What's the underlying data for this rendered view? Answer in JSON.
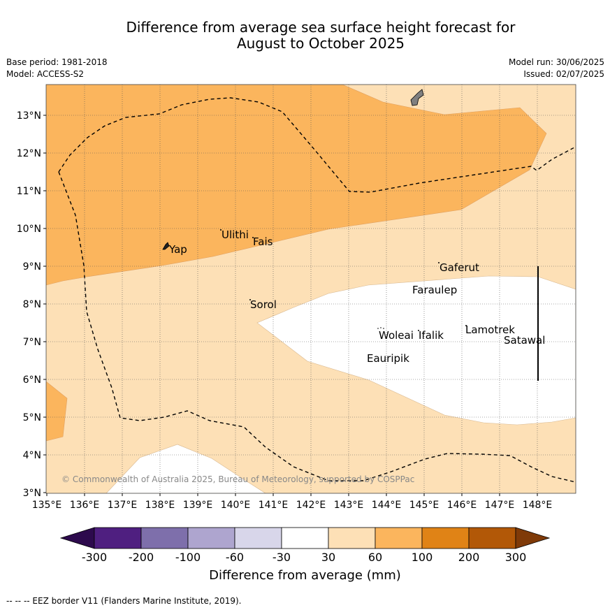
{
  "title_line1": "Difference from average sea surface height forecast for",
  "title_line2": "August to October 2025",
  "meta": {
    "base_period": "Base period: 1981-2018",
    "model": "Model: ACCESS-S2",
    "model_run": "Model run: 30/06/2025",
    "issued": "Issued: 02/07/2025"
  },
  "map": {
    "lat_labels": [
      "13°N",
      "12°N",
      "11°N",
      "10°N",
      "9°N",
      "8°N",
      "7°N",
      "6°N",
      "5°N",
      "4°N",
      "3°N"
    ],
    "lon_labels": [
      "135°E",
      "136°E",
      "137°E",
      "138°E",
      "139°E",
      "140°E",
      "141°E",
      "142°E",
      "143°E",
      "144°E",
      "145°E",
      "146°E",
      "147°E",
      "148°E"
    ],
    "places": [
      "Yap",
      "Ulithi",
      "Fais",
      "Gaferut",
      "Faraulep",
      "Sorol",
      "Woleai",
      "Ifalik",
      "Lamotrek",
      "Satawal",
      "Eauripik"
    ],
    "copyright": "© Commonwealth of Australia 2025, Bureau of Meteorology, supported by COSPPac",
    "colors": {
      "band_30_60": "#fde0b6",
      "band_60_100": "#fbb55d",
      "land": "#7f7f7f"
    }
  },
  "colorbar": {
    "ticks": [
      "-300",
      "-200",
      "-100",
      "-60",
      "-30",
      "30",
      "60",
      "100",
      "200",
      "300"
    ],
    "colors": [
      "#2d0a4d",
      "#4f1f80",
      "#7e6fab",
      "#aea5cf",
      "#d8d6ea",
      "#ffffff",
      "#fde0b6",
      "#fbb55d",
      "#e08316",
      "#b25807",
      "#7f3a08"
    ],
    "label": "Difference from average (mm)"
  },
  "footnote": "-- -- -- EEZ border V11 (Flanders Marine Institute, 2019)."
}
